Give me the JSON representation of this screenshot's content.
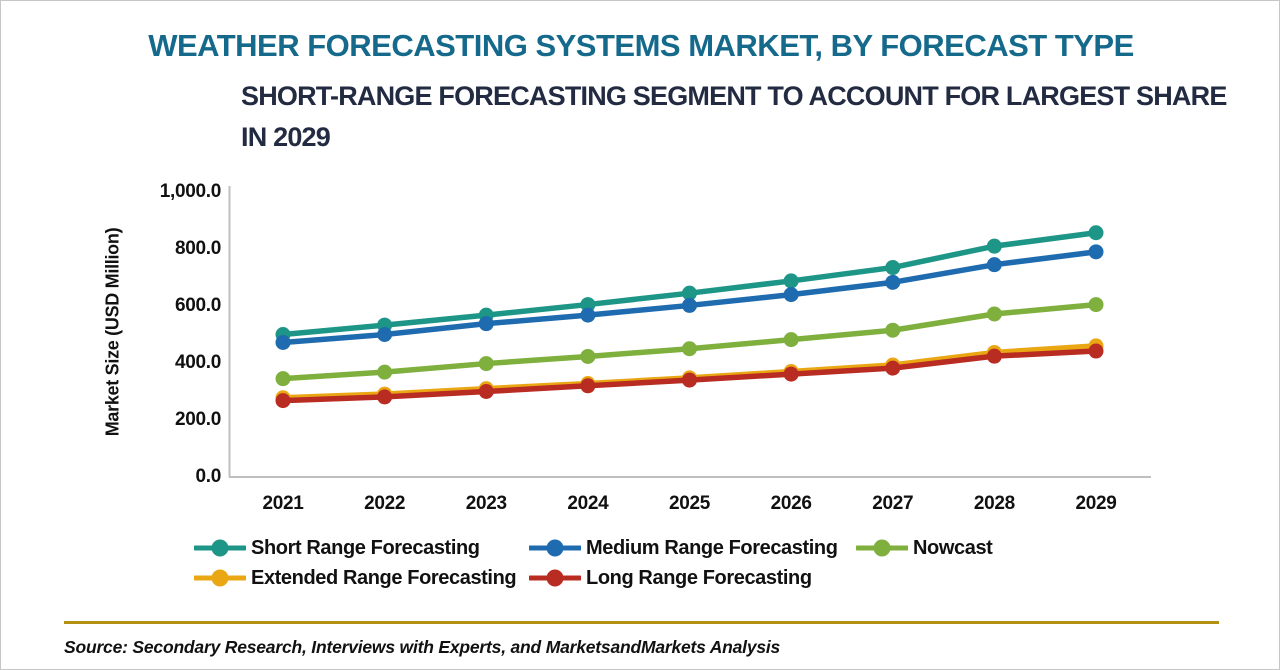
{
  "header": {
    "title": "WEATHER FORECASTING SYSTEMS MARKET, BY FORECAST TYPE",
    "subtitle_line1": "SHORT-RANGE FORECASTING SEGMENT TO ACCOUNT FOR LARGEST SHARE",
    "subtitle_line2": "IN 2029"
  },
  "chart_data": {
    "type": "line",
    "title": "WEATHER FORECASTING SYSTEMS MARKET, BY FORECAST TYPE",
    "subtitle": "SHORT-RANGE FORECASTING SEGMENT TO ACCOUNT FOR LARGEST SHARE IN 2029",
    "xlabel": "",
    "ylabel": "Market Size (USD Million)",
    "ylim": [
      0,
      1000
    ],
    "y_ticks": [
      0,
      200,
      400,
      600,
      800,
      1000
    ],
    "y_tick_labels": [
      "0.0",
      "200.0",
      "400.0",
      "600.0",
      "800.0",
      "1,000.0"
    ],
    "categories": [
      "2021",
      "2022",
      "2023",
      "2024",
      "2025",
      "2026",
      "2027",
      "2028",
      "2029"
    ],
    "grid": false,
    "legend_position": "bottom",
    "series": [
      {
        "name": "Short Range Forecasting",
        "color": "#1e9687",
        "values": [
          500,
          533,
          568,
          605,
          645,
          688,
          735,
          810,
          857
        ]
      },
      {
        "name": "Medium Range Forecasting",
        "color": "#1f6bb0",
        "values": [
          472,
          500,
          538,
          568,
          602,
          640,
          683,
          745,
          790
        ]
      },
      {
        "name": "Nowcast",
        "color": "#7faf3c",
        "values": [
          345,
          368,
          398,
          423,
          450,
          482,
          515,
          572,
          605
        ]
      },
      {
        "name": "Extended Range Forecasting",
        "color": "#eaa714",
        "values": [
          278,
          291,
          310,
          328,
          348,
          370,
          393,
          437,
          460
        ]
      },
      {
        "name": "Long Range Forecasting",
        "color": "#b92c22",
        "values": [
          268,
          281,
          300,
          320,
          340,
          361,
          382,
          424,
          442
        ]
      }
    ]
  },
  "footer": {
    "source": "Source: Secondary Research, Interviews with Experts, and MarketsandMarkets Analysis"
  },
  "colors": {
    "title": "#156a8c",
    "subtitle": "#222b42",
    "axis_line": "#bfbfbf",
    "rule": "#b3900f"
  }
}
